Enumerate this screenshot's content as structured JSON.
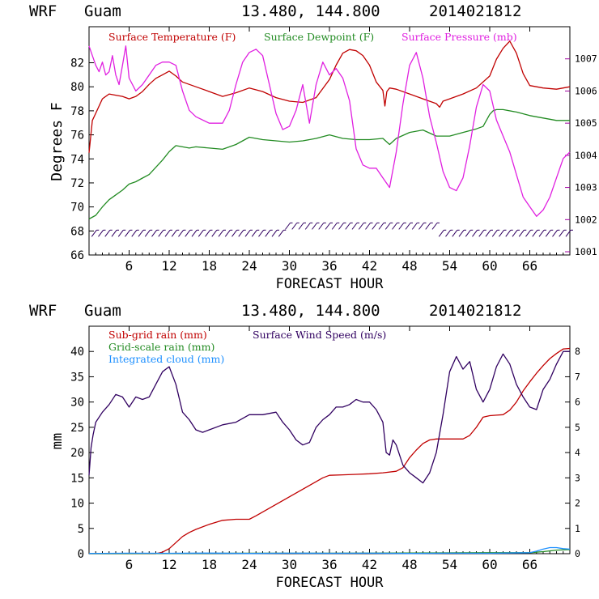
{
  "colors": {
    "temp": "#c00000",
    "dew": "#228b22",
    "pres": "#e020e0",
    "wind": "#300060",
    "subgrid": "#c00000",
    "gridscale": "#228b22",
    "cloud": "#1e90ff",
    "axis": "#000000",
    "right_axis": "#a000a0"
  },
  "chart_data": [
    {
      "type": "line",
      "header": {
        "model": "WRF",
        "location": "Guam",
        "coords": "13.480, 144.800",
        "init": "2014021812"
      },
      "title": "",
      "xlabel": "FORECAST HOUR",
      "ylabel": "Degrees F",
      "xlim": [
        0,
        72
      ],
      "ylim": [
        66,
        85
      ],
      "y2lim": [
        1000.9,
        1008
      ],
      "xticks": [
        6,
        12,
        18,
        24,
        30,
        36,
        42,
        48,
        54,
        60,
        66
      ],
      "xtick_labels": [
        "6",
        "12",
        "18",
        "24",
        "30",
        "36",
        "42",
        "48",
        "54",
        "60",
        "66"
      ],
      "yticks": [
        66,
        68,
        70,
        72,
        74,
        76,
        78,
        80,
        82
      ],
      "ytick_labels": [
        "66",
        "68",
        "70",
        "72",
        "74",
        "76",
        "78",
        "80",
        "82"
      ],
      "y2ticks": [
        1001,
        1002,
        1003,
        1004,
        1005,
        1006,
        1007
      ],
      "y2tick_labels": [
        "1001",
        "1002",
        "1003",
        "1004",
        "1005",
        "1006",
        "1007"
      ],
      "legend": [
        "Surface Temperature (F)",
        "Surface Dewpoint (F)",
        "Surface Pressure (mb)"
      ],
      "series": [
        {
          "name": "Surface Temperature (F)",
          "axis": "left",
          "x": [
            0,
            0.5,
            1,
            2,
            3,
            4,
            5,
            6,
            7,
            8,
            9,
            10,
            11,
            12,
            13,
            14,
            16,
            18,
            20,
            22,
            24,
            26,
            28,
            30,
            32,
            34,
            36,
            37,
            38,
            39,
            40,
            41,
            42,
            43,
            44,
            44.3,
            44.6,
            45,
            46,
            48,
            50,
            52,
            52.5,
            53,
            54,
            56,
            58,
            60,
            61,
            62,
            63,
            64,
            65,
            66,
            68,
            70,
            72
          ],
          "values": [
            74.5,
            77.2,
            77.8,
            79.0,
            79.4,
            79.3,
            79.2,
            79.0,
            79.2,
            79.6,
            80.2,
            80.7,
            81.0,
            81.3,
            80.9,
            80.4,
            80.0,
            79.6,
            79.2,
            79.5,
            79.9,
            79.6,
            79.1,
            78.8,
            78.7,
            79.1,
            80.6,
            81.8,
            82.8,
            83.1,
            83.0,
            82.6,
            81.8,
            80.4,
            79.7,
            78.4,
            79.6,
            79.9,
            79.8,
            79.4,
            79.0,
            78.6,
            78.3,
            78.8,
            79.0,
            79.4,
            79.9,
            80.9,
            82.3,
            83.2,
            83.8,
            82.8,
            81.1,
            80.1,
            79.9,
            79.8,
            80.0
          ]
        },
        {
          "name": "Surface Dewpoint (F)",
          "axis": "left",
          "x": [
            0,
            1,
            2,
            3,
            4,
            5,
            6,
            7,
            8,
            9,
            10,
            11,
            12,
            13,
            14,
            15,
            16,
            18,
            20,
            22,
            24,
            26,
            28,
            30,
            32,
            34,
            36,
            38,
            40,
            42,
            44,
            45,
            46,
            48,
            50,
            52,
            54,
            56,
            58,
            59,
            60,
            60.5,
            61,
            62,
            64,
            66,
            68,
            70,
            72
          ],
          "values": [
            69.0,
            69.3,
            70.0,
            70.6,
            71.0,
            71.4,
            71.9,
            72.1,
            72.4,
            72.7,
            73.3,
            73.9,
            74.6,
            75.1,
            75.0,
            74.9,
            75.0,
            74.9,
            74.8,
            75.2,
            75.8,
            75.6,
            75.5,
            75.4,
            75.5,
            75.7,
            76.0,
            75.7,
            75.6,
            75.6,
            75.7,
            75.2,
            75.7,
            76.2,
            76.4,
            75.9,
            75.9,
            76.2,
            76.5,
            76.7,
            77.7,
            78.0,
            78.1,
            78.1,
            77.9,
            77.6,
            77.4,
            77.2,
            77.2
          ]
        },
        {
          "name": "Surface Pressure (mb)",
          "axis": "right",
          "x": [
            0,
            0.5,
            1,
            1.5,
            2,
            2.5,
            3,
            3.5,
            4,
            4.5,
            5,
            5.5,
            6,
            7,
            8,
            9,
            10,
            11,
            12,
            13,
            14,
            15,
            16,
            18,
            20,
            21,
            22,
            23,
            24,
            25,
            26,
            27,
            28,
            29,
            30,
            31,
            32,
            33,
            34,
            35,
            36,
            37,
            38,
            39,
            40,
            41,
            42,
            43,
            44,
            45,
            46,
            47,
            48,
            49,
            50,
            51,
            52,
            53,
            54,
            55,
            56,
            57,
            58,
            59,
            60,
            61,
            62,
            63,
            64,
            65,
            66,
            67,
            68,
            69,
            70,
            71,
            72
          ],
          "values": [
            1007.4,
            1007.1,
            1006.8,
            1006.6,
            1006.9,
            1006.5,
            1006.6,
            1007.1,
            1006.5,
            1006.2,
            1006.8,
            1007.4,
            1006.4,
            1006.0,
            1006.2,
            1006.5,
            1006.8,
            1006.9,
            1006.9,
            1006.8,
            1006.0,
            1005.4,
            1005.2,
            1005.0,
            1005.0,
            1005.4,
            1006.2,
            1006.9,
            1007.2,
            1007.3,
            1007.1,
            1006.2,
            1005.3,
            1004.8,
            1004.9,
            1005.4,
            1006.2,
            1005.0,
            1006.2,
            1006.9,
            1006.5,
            1006.7,
            1006.4,
            1005.7,
            1004.2,
            1003.7,
            1003.6,
            1003.6,
            1003.3,
            1003.0,
            1004.1,
            1005.6,
            1006.8,
            1007.2,
            1006.4,
            1005.2,
            1004.4,
            1003.5,
            1003.0,
            1002.9,
            1003.3,
            1004.3,
            1005.5,
            1006.2,
            1006.0,
            1005.1,
            1004.6,
            1004.1,
            1003.4,
            1002.7,
            1002.4,
            1002.1,
            1002.3,
            1002.7,
            1003.3,
            1003.9,
            1004.1
          ]
        }
      ],
      "wind_barbs": {
        "label": "Wind barbs (hourly)"
      }
    },
    {
      "type": "line",
      "header": {
        "model": "WRF",
        "location": "Guam",
        "coords": "13.480, 144.800",
        "init": "2014021812"
      },
      "title": "",
      "xlabel": "FORECAST HOUR",
      "ylabel": "mm",
      "xlim": [
        0,
        72
      ],
      "ylim": [
        0,
        45
      ],
      "y2lim": [
        0,
        9
      ],
      "xticks": [
        6,
        12,
        18,
        24,
        30,
        36,
        42,
        48,
        54,
        60,
        66
      ],
      "xtick_labels": [
        "6",
        "12",
        "18",
        "24",
        "30",
        "36",
        "42",
        "48",
        "54",
        "60",
        "66"
      ],
      "yticks": [
        0,
        5,
        10,
        15,
        20,
        25,
        30,
        35,
        40
      ],
      "ytick_labels": [
        "0",
        "5",
        "10",
        "15",
        "20",
        "25",
        "30",
        "35",
        "40"
      ],
      "y2ticks": [
        0,
        1,
        2,
        3,
        4,
        5,
        6,
        7,
        8
      ],
      "y2tick_labels": [
        "0",
        "1",
        "2",
        "3",
        "4",
        "5",
        "6",
        "7",
        "8"
      ],
      "legend": [
        "Sub-grid rain (mm)",
        "Grid-scale rain (mm)",
        "Integrated cloud (mm)",
        "Surface Wind Speed (m/s)"
      ],
      "series": [
        {
          "name": "Sub-grid rain (mm)",
          "axis": "left",
          "x": [
            0,
            10,
            11,
            12,
            13,
            14,
            15,
            16,
            18,
            20,
            22,
            24,
            25,
            27,
            29,
            31,
            33,
            35,
            36,
            38,
            40,
            42,
            44,
            46,
            47,
            48,
            49,
            50,
            51,
            52,
            54,
            56,
            57,
            58,
            59,
            60,
            61,
            62,
            63,
            64,
            65,
            66,
            67,
            68,
            69,
            70,
            71,
            72
          ],
          "values": [
            0,
            0,
            0.3,
            1.0,
            2.2,
            3.4,
            4.2,
            4.8,
            5.8,
            6.6,
            6.8,
            6.8,
            7.5,
            9.0,
            10.5,
            12.0,
            13.5,
            15.0,
            15.5,
            15.6,
            15.7,
            15.8,
            16.0,
            16.3,
            17.0,
            19.0,
            20.5,
            21.8,
            22.5,
            22.7,
            22.7,
            22.7,
            23.4,
            25.0,
            27.0,
            27.3,
            27.4,
            27.5,
            28.4,
            30.0,
            32.2,
            34.0,
            35.7,
            37.2,
            38.6,
            39.6,
            40.5,
            40.6
          ]
        },
        {
          "name": "Grid-scale rain (mm)",
          "axis": "left",
          "x": [
            0,
            12,
            24,
            36,
            48,
            60,
            66,
            68,
            70,
            72
          ],
          "values": [
            0,
            0.05,
            0.1,
            0.1,
            0.15,
            0.2,
            0.2,
            0.4,
            0.7,
            0.8
          ]
        },
        {
          "name": "Integrated cloud (mm)",
          "axis": "left",
          "x": [
            0,
            6,
            12,
            18,
            24,
            30,
            36,
            42,
            48,
            54,
            60,
            66,
            67,
            68,
            69,
            70,
            71,
            72
          ],
          "values": [
            0.05,
            0.1,
            0.08,
            0.12,
            0.05,
            0.1,
            0.08,
            0.1,
            0.05,
            0.1,
            0.08,
            0.2,
            0.5,
            0.9,
            1.2,
            1.2,
            1.0,
            0.9
          ]
        },
        {
          "name": "Surface Wind Speed (m/s)",
          "axis": "right",
          "x": [
            0,
            0.3,
            0.6,
            1,
            2,
            3,
            4,
            5,
            6,
            7,
            8,
            9,
            10,
            11,
            12,
            13,
            14,
            15,
            16,
            17,
            18,
            20,
            22,
            24,
            26,
            28,
            29,
            30,
            31,
            32,
            33,
            34,
            35,
            36,
            37,
            38,
            39,
            40,
            41,
            42,
            43,
            44,
            44.5,
            45,
            45.5,
            46,
            47,
            48,
            49,
            50,
            51,
            52,
            53,
            54,
            55,
            56,
            57,
            58,
            59,
            60,
            61,
            62,
            63,
            64,
            65,
            66,
            67,
            68,
            69,
            70,
            71,
            72
          ],
          "values": [
            3.1,
            4.2,
            4.7,
            5.2,
            5.6,
            5.9,
            6.3,
            6.2,
            5.8,
            6.2,
            6.1,
            6.2,
            6.7,
            7.2,
            7.4,
            6.7,
            5.6,
            5.3,
            4.9,
            4.8,
            4.9,
            5.1,
            5.2,
            5.5,
            5.5,
            5.6,
            5.2,
            4.9,
            4.5,
            4.3,
            4.4,
            5.0,
            5.3,
            5.5,
            5.8,
            5.8,
            5.9,
            6.1,
            6.0,
            6.0,
            5.7,
            5.2,
            4.0,
            3.9,
            4.5,
            4.3,
            3.5,
            3.2,
            3.0,
            2.8,
            3.2,
            4.0,
            5.5,
            7.2,
            7.8,
            7.3,
            7.6,
            6.5,
            6.0,
            6.5,
            7.4,
            7.9,
            7.5,
            6.7,
            6.2,
            5.8,
            5.7,
            6.5,
            6.9,
            7.5,
            8.0,
            8.0
          ]
        }
      ]
    }
  ]
}
